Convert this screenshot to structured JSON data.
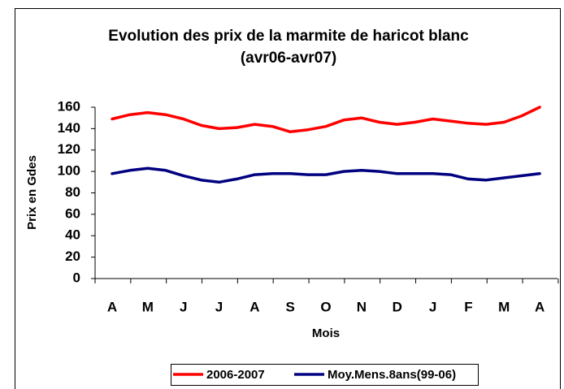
{
  "chart_data": {
    "type": "line",
    "title": [
      "Evolution des prix de la marmite de haricot blanc",
      "(avr06-avr07)"
    ],
    "x_label": "Mois",
    "y_label": "Prix en Gdes",
    "categories": [
      "A",
      null,
      "M",
      null,
      "J",
      null,
      "J",
      null,
      "A",
      null,
      "S",
      null,
      "O",
      null,
      "N",
      null,
      "D",
      null,
      "J",
      null,
      "F",
      null,
      "M",
      null,
      "A"
    ],
    "series": [
      {
        "name": "2006-2007",
        "color": "#ff0000",
        "values": [
          149,
          153,
          155,
          153,
          149,
          143,
          140,
          141,
          144,
          142,
          137,
          139,
          142,
          148,
          150,
          146,
          144,
          146,
          149,
          147,
          145,
          144,
          146,
          152,
          160
        ]
      },
      {
        "name": "Moy.Mens.8ans(99-06)",
        "color": "#000080",
        "values": [
          98,
          101,
          103,
          101,
          96,
          92,
          90,
          93,
          97,
          98,
          98,
          97,
          97,
          100,
          101,
          100,
          98,
          98,
          98,
          97,
          93,
          92,
          94,
          96,
          98
        ]
      }
    ],
    "ylim": [
      0,
      160
    ],
    "yticks": [
      0,
      20,
      40,
      60,
      80,
      100,
      120,
      140,
      160
    ],
    "grid": false,
    "legend": "bottom"
  }
}
